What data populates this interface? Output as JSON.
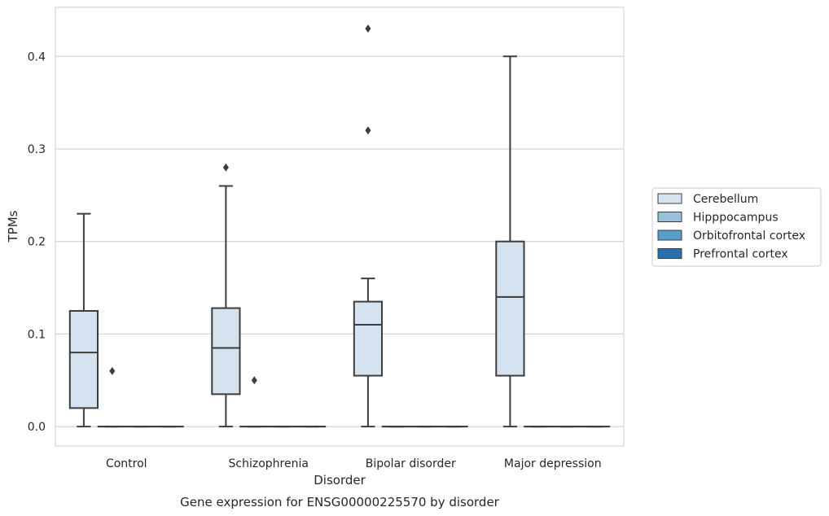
{
  "chart_data": {
    "type": "box",
    "caption": "Gene expression for ENSG00000225570 by disorder",
    "xlabel": "Disorder",
    "ylabel": "TPMs",
    "ylim": [
      -0.021,
      0.453
    ],
    "yticks": [
      0.0,
      0.1,
      0.2,
      0.3,
      0.4
    ],
    "ytick_labels": [
      "0.0",
      "0.1",
      "0.2",
      "0.3",
      "0.4"
    ],
    "grid": "horizontal",
    "legend_position": "right",
    "categories": [
      "Control",
      "Schizophrenia",
      "Bipolar disorder",
      "Major depression"
    ],
    "series": [
      {
        "name": "Cerebellum",
        "color": "#d5e3f1",
        "boxes": [
          {
            "category": "Control",
            "whisker_low": 0.0,
            "q1": 0.02,
            "median": 0.08,
            "q3": 0.125,
            "whisker_high": 0.23,
            "outliers": []
          },
          {
            "category": "Schizophrenia",
            "whisker_low": 0.0,
            "q1": 0.035,
            "median": 0.085,
            "q3": 0.128,
            "whisker_high": 0.26,
            "outliers": [
              0.28
            ]
          },
          {
            "category": "Bipolar disorder",
            "whisker_low": 0.0,
            "q1": 0.055,
            "median": 0.11,
            "q3": 0.135,
            "whisker_high": 0.16,
            "outliers": [
              0.32,
              0.43
            ]
          },
          {
            "category": "Major depression",
            "whisker_low": 0.0,
            "q1": 0.055,
            "median": 0.14,
            "q3": 0.2,
            "whisker_high": 0.4,
            "outliers": []
          }
        ]
      },
      {
        "name": "Hipppocampus",
        "color": "#9ac1dc",
        "boxes": [
          {
            "category": "Control",
            "whisker_low": 0.0,
            "q1": 0.0,
            "median": 0.0,
            "q3": 0.0,
            "whisker_high": 0.0,
            "outliers": [
              0.06
            ]
          },
          {
            "category": "Schizophrenia",
            "whisker_low": 0.0,
            "q1": 0.0,
            "median": 0.0,
            "q3": 0.0,
            "whisker_high": 0.0,
            "outliers": [
              0.05
            ]
          },
          {
            "category": "Bipolar disorder",
            "whisker_low": 0.0,
            "q1": 0.0,
            "median": 0.0,
            "q3": 0.0,
            "whisker_high": 0.0,
            "outliers": []
          },
          {
            "category": "Major depression",
            "whisker_low": 0.0,
            "q1": 0.0,
            "median": 0.0,
            "q3": 0.0,
            "whisker_high": 0.0,
            "outliers": []
          }
        ]
      },
      {
        "name": "Orbitofrontal cortex",
        "color": "#5a9dc9",
        "boxes": [
          {
            "category": "Control",
            "whisker_low": 0.0,
            "q1": 0.0,
            "median": 0.0,
            "q3": 0.0,
            "whisker_high": 0.0,
            "outliers": []
          },
          {
            "category": "Schizophrenia",
            "whisker_low": 0.0,
            "q1": 0.0,
            "median": 0.0,
            "q3": 0.0,
            "whisker_high": 0.0,
            "outliers": []
          },
          {
            "category": "Bipolar disorder",
            "whisker_low": 0.0,
            "q1": 0.0,
            "median": 0.0,
            "q3": 0.0,
            "whisker_high": 0.0,
            "outliers": []
          },
          {
            "category": "Major depression",
            "whisker_low": 0.0,
            "q1": 0.0,
            "median": 0.0,
            "q3": 0.0,
            "whisker_high": 0.0,
            "outliers": []
          }
        ]
      },
      {
        "name": "Prefrontal cortex",
        "color": "#2b6fad",
        "boxes": [
          {
            "category": "Control",
            "whisker_low": 0.0,
            "q1": 0.0,
            "median": 0.0,
            "q3": 0.0,
            "whisker_high": 0.0,
            "outliers": []
          },
          {
            "category": "Schizophrenia",
            "whisker_low": 0.0,
            "q1": 0.0,
            "median": 0.0,
            "q3": 0.0,
            "whisker_high": 0.0,
            "outliers": []
          },
          {
            "category": "Bipolar disorder",
            "whisker_low": 0.0,
            "q1": 0.0,
            "median": 0.0,
            "q3": 0.0,
            "whisker_high": 0.0,
            "outliers": []
          },
          {
            "category": "Major depression",
            "whisker_low": 0.0,
            "q1": 0.0,
            "median": 0.0,
            "q3": 0.0,
            "whisker_high": 0.0,
            "outliers": []
          }
        ]
      }
    ]
  },
  "style": {
    "line_color": "#3d3d3d",
    "grid_color": "#cccccc",
    "frame_color": "#cccccc",
    "outlier_color": "#3d3d3d"
  }
}
